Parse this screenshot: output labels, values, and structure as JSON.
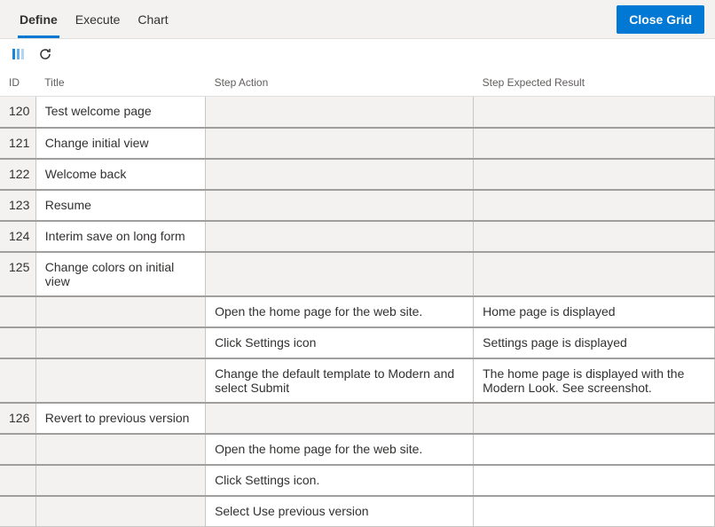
{
  "toolbar": {
    "tabs": [
      {
        "label": "Define",
        "active": true
      },
      {
        "label": "Execute",
        "active": false
      },
      {
        "label": "Chart",
        "active": false
      }
    ],
    "close_label": "Close Grid"
  },
  "iconbar": {
    "columns_icon": "column-options",
    "refresh_icon": "refresh"
  },
  "columns": {
    "id": "ID",
    "title": "Title",
    "action": "Step Action",
    "expected": "Step Expected Result"
  },
  "rows": [
    {
      "id": "120",
      "title": "Test welcome page",
      "action": "",
      "expected": "",
      "action_shaded": true,
      "expected_shaded": true,
      "id_shaded": true,
      "title_shaded": false
    },
    {
      "id": "121",
      "title": "Change initial view",
      "action": "",
      "expected": "",
      "action_shaded": true,
      "expected_shaded": true,
      "id_shaded": true,
      "title_shaded": false
    },
    {
      "id": "122",
      "title": "Welcome back",
      "action": "",
      "expected": "",
      "action_shaded": true,
      "expected_shaded": true,
      "id_shaded": true,
      "title_shaded": false
    },
    {
      "id": "123",
      "title": "Resume",
      "action": "",
      "expected": "",
      "action_shaded": true,
      "expected_shaded": true,
      "id_shaded": true,
      "title_shaded": false
    },
    {
      "id": "124",
      "title": "Interim save on long form",
      "action": "",
      "expected": "",
      "action_shaded": true,
      "expected_shaded": true,
      "id_shaded": true,
      "title_shaded": false
    },
    {
      "id": "125",
      "title": "Change colors on initial view",
      "action": "",
      "expected": "",
      "action_shaded": true,
      "expected_shaded": true,
      "id_shaded": true,
      "title_shaded": false
    },
    {
      "id": "",
      "title": "",
      "action": "Open the home page for the web site.",
      "expected": "Home page is displayed",
      "action_shaded": false,
      "expected_shaded": false,
      "id_shaded": true,
      "title_shaded": true
    },
    {
      "id": "",
      "title": "",
      "action": "Click Settings icon",
      "expected": "Settings page is displayed",
      "action_shaded": false,
      "expected_shaded": false,
      "id_shaded": true,
      "title_shaded": true
    },
    {
      "id": "",
      "title": "",
      "action": "Change the default template to Modern and select Submit",
      "expected": "The home page is displayed with the Modern Look. See screenshot.",
      "action_shaded": false,
      "expected_shaded": false,
      "id_shaded": true,
      "title_shaded": true
    },
    {
      "id": "126",
      "title": "Revert to previous version",
      "action": "",
      "expected": "",
      "action_shaded": true,
      "expected_shaded": true,
      "id_shaded": true,
      "title_shaded": false
    },
    {
      "id": "",
      "title": "",
      "action": "Open the home page for the web site.",
      "expected": "",
      "action_shaded": false,
      "expected_shaded": false,
      "id_shaded": true,
      "title_shaded": true
    },
    {
      "id": "",
      "title": "",
      "action": "Click Settings icon.",
      "expected": "",
      "action_shaded": false,
      "expected_shaded": false,
      "id_shaded": true,
      "title_shaded": true
    },
    {
      "id": "",
      "title": "",
      "action": "Select Use previous version",
      "expected": "",
      "action_shaded": false,
      "expected_shaded": false,
      "id_shaded": true,
      "title_shaded": true
    }
  ],
  "style": {
    "accent": "#0078d4",
    "bg_shaded": "#f3f2f1",
    "border": "#c8c6c4"
  }
}
